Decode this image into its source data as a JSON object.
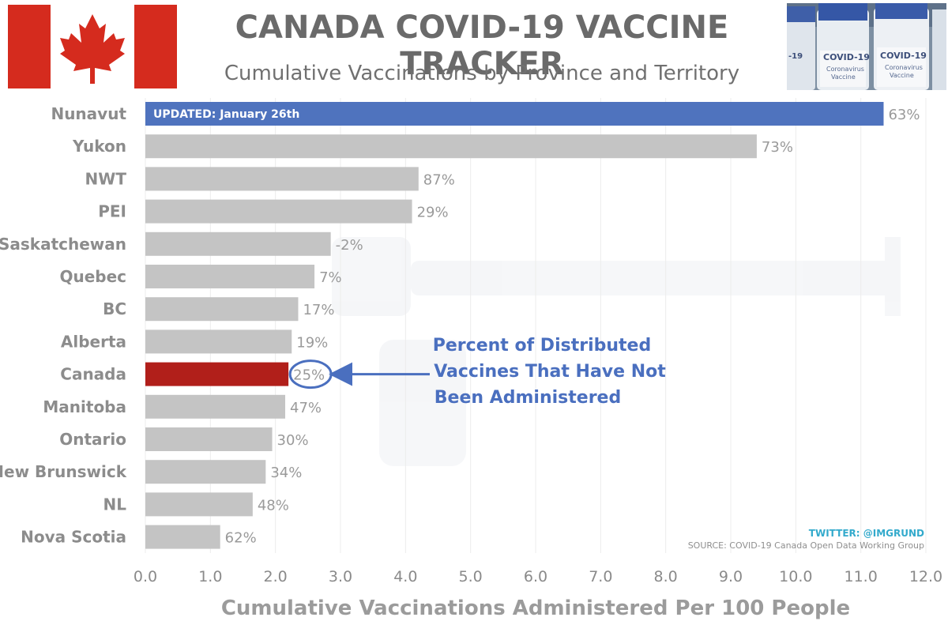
{
  "header": {
    "title": "CANADA COVID-19 VACCINE TRACKER",
    "subtitle": "Cumulative Vaccinations by Province and Territory",
    "photo_labels": [
      "-19",
      "COVID-19",
      "Coronavirus",
      "Vaccine",
      "COVID-19",
      "Coronavirus",
      "Vaccine"
    ]
  },
  "colors": {
    "default_bar": "#c4c4c4",
    "highlight_bar": "#4f73be",
    "canada_bar": "#b11f1a",
    "annotation": "#4a6fbf",
    "flag_red": "#d52b1e",
    "axis_text": "#8a8a8a"
  },
  "banner": "UPDATED: January 26th",
  "annotation": {
    "lines": [
      "Percent of Distributed",
      "Vaccines That Have Not",
      "Been Administered"
    ]
  },
  "credits": {
    "twitter": "TWITTER: @IMGRUND",
    "source": "SOURCE: COVID-19 Canada Open Data Working Group"
  },
  "chart_data": {
    "type": "bar",
    "orientation": "horizontal",
    "title": "CANADA COVID-19 VACCINE TRACKER",
    "subtitle": "Cumulative Vaccinations by Province and Territory",
    "xlabel": "Cumulative Vaccinations Administered Per 100 People",
    "xlim": [
      0,
      12
    ],
    "xticks": [
      "0.0",
      "1.0",
      "2.0",
      "3.0",
      "4.0",
      "5.0",
      "6.0",
      "7.0",
      "8.0",
      "9.0",
      "10.0",
      "11.0",
      "12.0"
    ],
    "grid": "vertical",
    "categories": [
      "Nunavut",
      "Yukon",
      "NWT",
      "PEI",
      "Saskatchewan",
      "Quebec",
      "BC",
      "Alberta",
      "Canada",
      "Manitoba",
      "Ontario",
      "New Brunswick",
      "NL",
      "Nova Scotia"
    ],
    "values": [
      11.35,
      9.4,
      4.2,
      4.1,
      2.85,
      2.6,
      2.35,
      2.25,
      2.2,
      2.15,
      1.95,
      1.85,
      1.65,
      1.15
    ],
    "labels": [
      "63%",
      "73%",
      "87%",
      "29%",
      "-2%",
      "7%",
      "17%",
      "19%",
      "25%",
      "47%",
      "30%",
      "34%",
      "48%",
      "62%"
    ]
  }
}
